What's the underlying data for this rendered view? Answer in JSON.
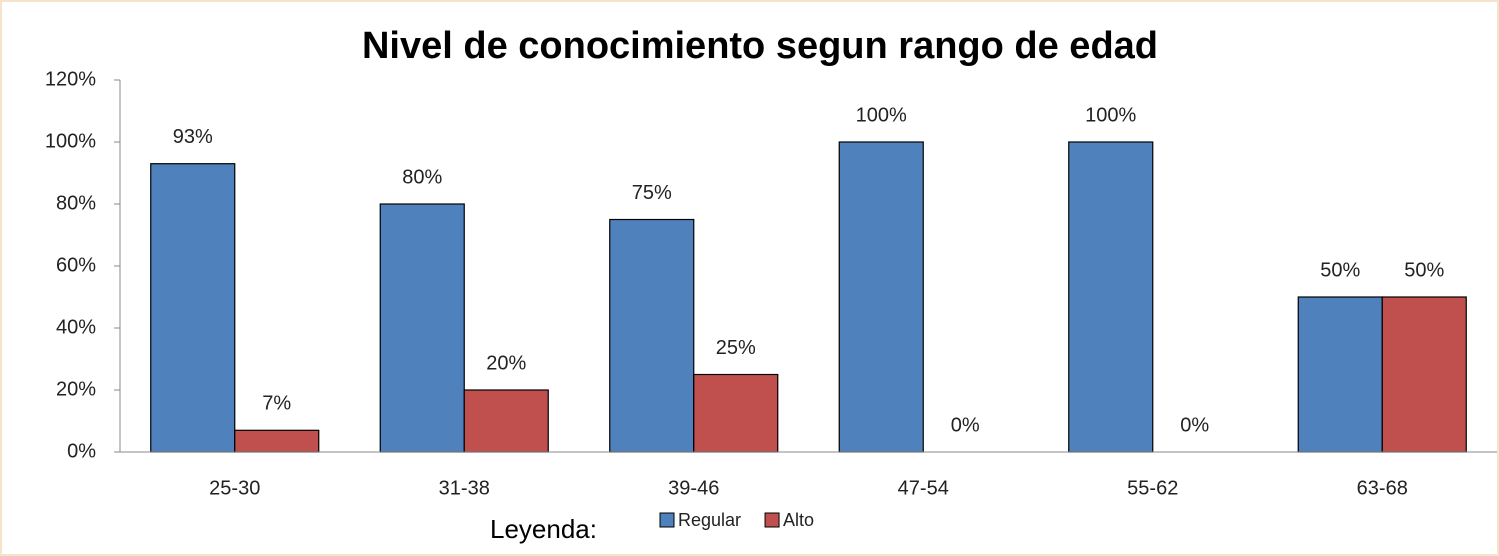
{
  "chart_data": {
    "type": "bar",
    "title": "Nivel de conocimiento segun rango de edad",
    "categories": [
      "25-30",
      "31-38",
      "39-46",
      "47-54",
      "55-62",
      "63-68"
    ],
    "series": [
      {
        "name": "Regular",
        "color": "#4f81bd",
        "values": [
          93,
          80,
          75,
          100,
          100,
          50
        ],
        "value_labels": [
          "93%",
          "80%",
          "75%",
          "100%",
          "100%",
          "50%"
        ]
      },
      {
        "name": "Alto",
        "color": "#c0504d",
        "values": [
          7,
          20,
          25,
          0,
          0,
          50
        ],
        "value_labels": [
          "7%",
          "20%",
          "25%",
          "0%",
          "0%",
          "50%"
        ]
      }
    ],
    "ylim": [
      0,
      120
    ],
    "yticks": [
      {
        "value": 0,
        "label": "0%"
      },
      {
        "value": 20,
        "label": "20%"
      },
      {
        "value": 40,
        "label": "40%"
      },
      {
        "value": 60,
        "label": "60%"
      },
      {
        "value": 80,
        "label": "80%"
      },
      {
        "value": 100,
        "label": "100%"
      },
      {
        "value": 120,
        "label": "120%"
      }
    ],
    "grid": false,
    "legend_title": "Leyenda:",
    "legend_position": "bottom"
  }
}
